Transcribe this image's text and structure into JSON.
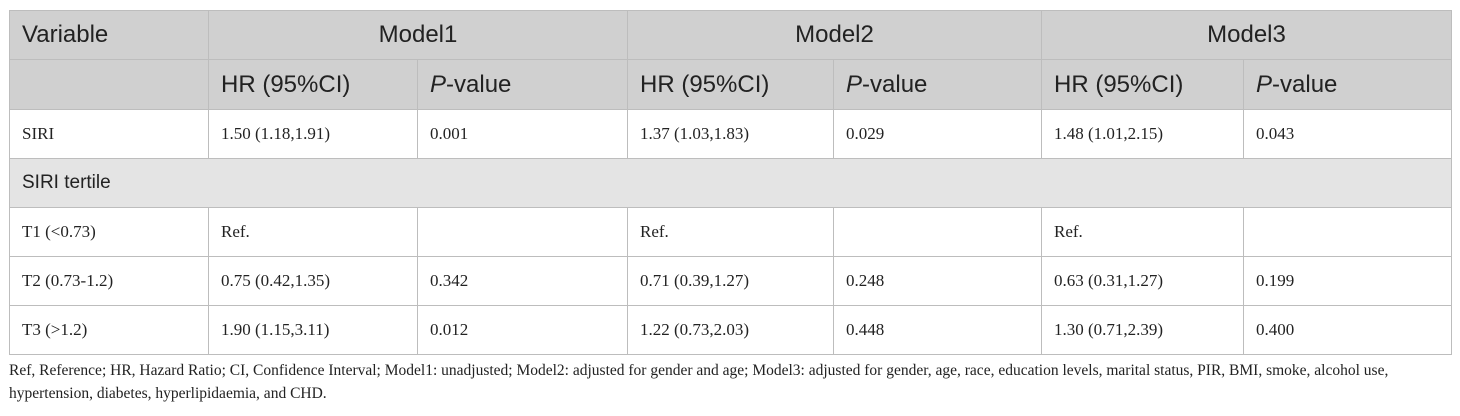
{
  "table": {
    "variable_header": "Variable",
    "models": [
      "Model1",
      "Model2",
      "Model3"
    ],
    "sub_headers": {
      "hr": "HR (95%CI)",
      "p_prefix": "P",
      "p_suffix": "-value"
    },
    "rows": [
      {
        "label": "SIRI",
        "cells": [
          "1.50 (1.18,1.91)",
          "0.001",
          "1.37 (1.03,1.83)",
          "0.029",
          "1.48 (1.01,2.15)",
          "0.043"
        ]
      },
      {
        "section": "SIRI tertile"
      },
      {
        "label": "T1 (<0.73)",
        "cells": [
          "Ref.",
          "",
          "Ref.",
          "",
          "Ref.",
          ""
        ]
      },
      {
        "label": "T2 (0.73-1.2)",
        "cells": [
          "0.75 (0.42,1.35)",
          "0.342",
          "0.71 (0.39,1.27)",
          "0.248",
          "0.63 (0.31,1.27)",
          "0.199"
        ]
      },
      {
        "label": "T3 (>1.2)",
        "cells": [
          "1.90 (1.15,3.11)",
          "0.012",
          "1.22 (0.73,2.03)",
          "0.448",
          "1.30 (0.71,2.39)",
          "0.400"
        ]
      }
    ]
  },
  "footnote": "Ref, Reference; HR, Hazard Ratio; CI, Confidence Interval; Model1: unadjusted; Model2: adjusted for gender and age; Model3: adjusted for gender, age, race, education levels, marital status, PIR, BMI, smoke, alcohol use, hypertension, diabetes, hyperlipidaemia, and CHD."
}
